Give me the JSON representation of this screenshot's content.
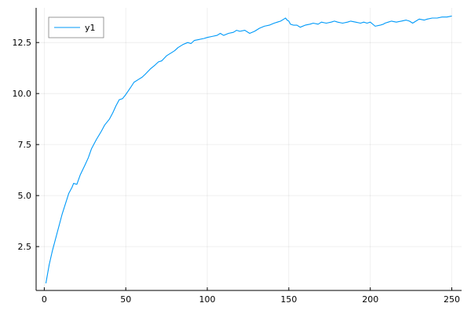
{
  "chart_data": {
    "type": "line",
    "title": "",
    "xlabel": "",
    "ylabel": "",
    "xlim": [
      -5,
      256
    ],
    "ylim": [
      0.35,
      14.2
    ],
    "x_ticks": [
      0,
      50,
      100,
      150,
      200,
      250
    ],
    "x_tick_labels": [
      "0",
      "50",
      "100",
      "150",
      "200",
      "250"
    ],
    "y_ticks": [
      2.5,
      5.0,
      7.5,
      10.0,
      12.5
    ],
    "y_tick_labels": [
      "2.5",
      "5.0",
      "7.5",
      "10.0",
      "12.5"
    ],
    "grid": true,
    "legend": {
      "position": "top-left",
      "entries": [
        "y1"
      ]
    },
    "colors": {
      "y1": "#009af9"
    },
    "series": [
      {
        "name": "y1",
        "x": [
          1,
          3,
          5,
          8,
          11,
          13,
          15,
          17,
          18,
          20,
          22,
          25,
          27,
          29,
          32,
          35,
          37,
          40,
          42,
          44,
          46,
          48,
          50,
          53,
          55,
          58,
          60,
          62,
          65,
          68,
          70,
          72,
          75,
          78,
          80,
          82,
          85,
          88,
          90,
          92,
          95,
          98,
          100,
          103,
          106,
          108,
          110,
          113,
          116,
          118,
          120,
          123,
          126,
          129,
          132,
          135,
          138,
          141,
          143,
          145,
          147,
          148,
          149,
          150,
          151,
          153,
          155,
          157,
          160,
          163,
          165,
          168,
          170,
          173,
          176,
          178,
          180,
          183,
          186,
          188,
          191,
          194,
          196,
          198,
          200,
          203,
          206,
          208,
          209,
          211,
          213,
          216,
          219,
          222,
          224,
          226,
          228,
          230,
          233,
          235,
          238,
          241,
          244,
          247,
          250
        ],
        "y": [
          0.7,
          1.6,
          2.3,
          3.2,
          4.1,
          4.6,
          5.1,
          5.4,
          5.6,
          5.55,
          6.0,
          6.5,
          6.85,
          7.3,
          7.75,
          8.15,
          8.45,
          8.75,
          9.05,
          9.4,
          9.7,
          9.75,
          9.95,
          10.3,
          10.55,
          10.7,
          10.8,
          10.95,
          11.2,
          11.4,
          11.55,
          11.6,
          11.85,
          12.0,
          12.1,
          12.25,
          12.4,
          12.5,
          12.45,
          12.6,
          12.65,
          12.7,
          12.75,
          12.8,
          12.85,
          12.95,
          12.85,
          12.95,
          13.0,
          13.1,
          13.05,
          13.1,
          12.95,
          13.05,
          13.2,
          13.3,
          13.35,
          13.45,
          13.5,
          13.55,
          13.65,
          13.7,
          13.6,
          13.55,
          13.4,
          13.35,
          13.35,
          13.25,
          13.35,
          13.4,
          13.45,
          13.4,
          13.5,
          13.45,
          13.5,
          13.55,
          13.5,
          13.45,
          13.5,
          13.55,
          13.5,
          13.45,
          13.5,
          13.45,
          13.5,
          13.3,
          13.35,
          13.4,
          13.45,
          13.5,
          13.55,
          13.5,
          13.55,
          13.6,
          13.55,
          13.45,
          13.55,
          13.65,
          13.6,
          13.65,
          13.7,
          13.7,
          13.75,
          13.75,
          13.8
        ]
      }
    ]
  }
}
